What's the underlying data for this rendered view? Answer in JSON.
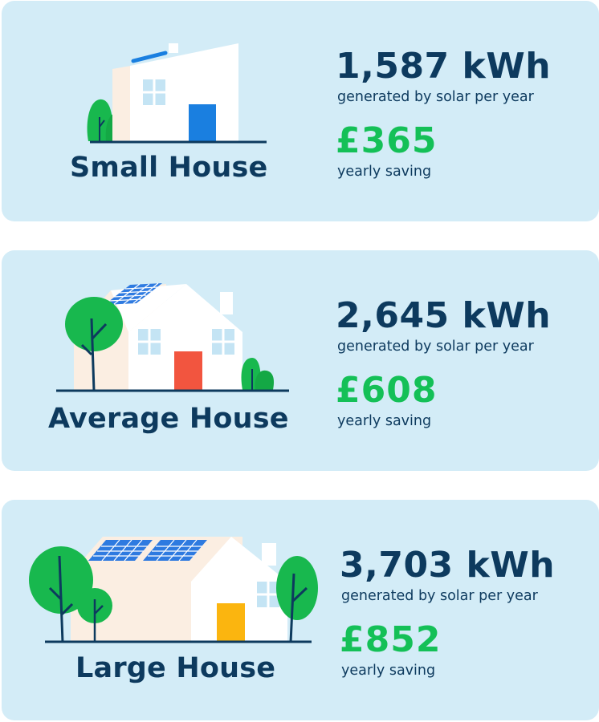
{
  "colors": {
    "card_bg": "#d3ecf7",
    "navy": "#0d3a5e",
    "green": "#14c057"
  },
  "houses": [
    {
      "label": "Small House",
      "energy": "1,587 kWh",
      "energy_caption": "generated by solar per year",
      "saving": "£365",
      "saving_caption": "yearly saving",
      "door_color": "#1a7fe0",
      "solar_panels": 1
    },
    {
      "label": "Average House",
      "energy": "2,645 kWh",
      "energy_caption": "generated by solar per year",
      "saving": "£608",
      "saving_caption": "yearly saving",
      "door_color": "#f2553f",
      "solar_panels": 1
    },
    {
      "label": "Large House",
      "energy": "3,703 kWh",
      "energy_caption": "generated by solar per year",
      "saving": "£852",
      "saving_caption": "yearly saving",
      "door_color": "#fbb50f",
      "solar_panels": 2
    }
  ]
}
